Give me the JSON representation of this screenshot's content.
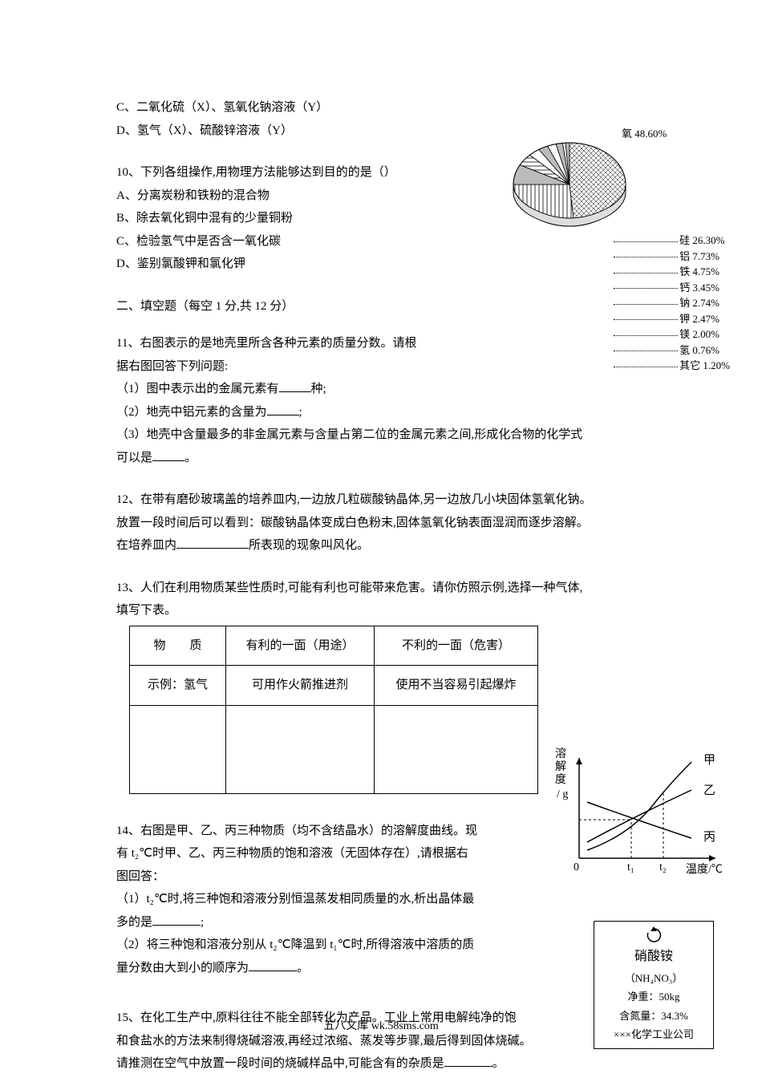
{
  "opts9": {
    "c": "C、二氧化硫（X）、氢氧化钠溶液（Y）",
    "d": "D、氢气（X）、硫酸锌溶液（Y）"
  },
  "q10": {
    "stem": "10、下列各组操作,用物理方法能够达到目的的是（）",
    "a": "A、分离炭粉和铁粉的混合物",
    "b": "B、除去氧化铜中混有的少量铜粉",
    "c": "C、检验氢气中是否含一氧化碳",
    "d": "D、鉴别氯酸钾和氯化钾"
  },
  "sec2": "二、填空题（每空 1 分,共 12 分）",
  "q11": {
    "stem1": "11、右图表示的是地壳里所含各种元素的质量分数。请根",
    "stem2": "据右图回答下列问题:",
    "p1a": "（1）图中表示出的金属元素有",
    "p1b": "种;",
    "p2a": "（2）地壳中铝元素的含量为",
    "p2b": ";",
    "p3a": "（3）地壳中含量最多的非金属元素与含量占第二位的金属元素之间,形成化合物的化学式",
    "p3b": "可以是",
    "p3c": "。"
  },
  "q12": {
    "l1": "12、在带有磨砂玻璃盖的培养皿内,一边放几粒碳酸钠晶体,另一边放几小块固体氢氧化钠。",
    "l2": "放置一段时间后可以看到：碳酸钠晶体变成白色粉末,固体氢氧化钠表面湿润而逐步溶解。",
    "l3a": "在培养皿内",
    "l3b": "所表现的现象叫风化。"
  },
  "q13": {
    "stem": "13、人们在利用物质某些性质时,可能有利也可能带来危害。请你仿照示例,选择一种气体,",
    "stem2": "填写下表。",
    "h1": "物　　质",
    "h2": "有利的一面（用途）",
    "h3": "不利的一面（危害）",
    "r1c1": "示例：氢气",
    "r1c2": "可用作火箭推进剂",
    "r1c3": "使用不当容易引起爆炸"
  },
  "q14": {
    "l1": "14、右图是甲、乙、丙三种物质（均不含结晶水）的溶解度曲线。现",
    "l2": "有 t₂℃时甲、乙、丙三种物质的饱和溶液（无固体存在）,请根据右",
    "l3": "图回答：",
    "p1a": "（1）t₂℃时,将三种饱和溶液分别恒温蒸发相同质量的水,析出晶体最",
    "p1b": "多的是",
    "p1c": ";",
    "p2a": "（2）将三种饱和溶液分别从 t₂℃降温到 t₁℃时,所得溶液中溶质的质",
    "p2b": "量分数由大到小的顺序为",
    "p2c": "。"
  },
  "q15": {
    "l1": "15、在化工生产中,原料往往不能全部转化为产品。工业上常用电解纯净的饱",
    "l2": "和食盐水的方法来制得烧碱溶液,再经过浓缩、蒸发等步骤,最后得到固体烧碱。",
    "l3a": "请推测在空气中放置一段时间的烧碱样品中,可能含有的杂质是",
    "l3b": "。"
  },
  "pie": {
    "oxy": "氧 48.60%",
    "items": [
      "硅 26.30%",
      "铝 7.73%",
      "铁 4.75%",
      "钙 3.45%",
      "钠 2.74%",
      "钾 2.47%",
      "镁 2.00%",
      "氢 0.76%",
      "其它 1.20%"
    ],
    "slices": [
      {
        "start": -90,
        "end": 85,
        "fill": "crosshatch"
      },
      {
        "start": 85,
        "end": 180,
        "fill": "lines"
      },
      {
        "start": 180,
        "end": 208,
        "fill": "gray"
      },
      {
        "start": 208,
        "end": 225,
        "fill": "lines2"
      },
      {
        "start": 225,
        "end": 237,
        "fill": "white"
      },
      {
        "start": 237,
        "end": 247,
        "fill": "gray"
      },
      {
        "start": 247,
        "end": 256,
        "fill": "white"
      },
      {
        "start": 256,
        "end": 263,
        "fill": "gray"
      },
      {
        "start": 263,
        "end": 266,
        "fill": "white"
      },
      {
        "start": 266,
        "end": 270,
        "fill": "gray"
      }
    ]
  },
  "sol": {
    "ylabel1": "溶",
    "ylabel2": "解",
    "ylabel3": "度",
    "yunit": "/ g",
    "xlabel": "温度/℃",
    "t1": "t₁",
    "t2": "t₂",
    "a": "甲",
    "b": "乙",
    "c": "丙",
    "o": "0"
  },
  "fert": {
    "name": "硝酸铵",
    "formula": "（NH₄NO₃）",
    "weight": "净重：50kg",
    "nitrogen": "含氮量：34.3%",
    "company": "×××化学工业公司"
  },
  "footer": "五八文库 wk.58sms.com"
}
